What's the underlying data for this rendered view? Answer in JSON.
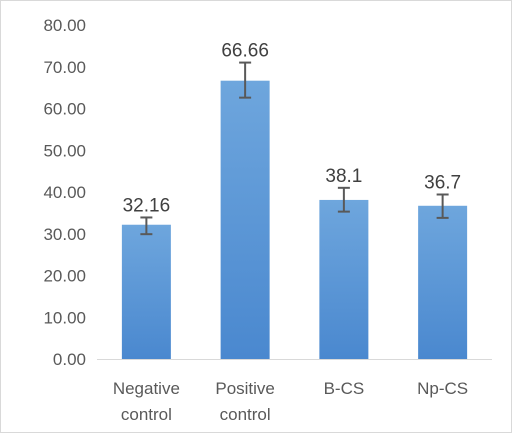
{
  "chart_data": {
    "type": "bar",
    "categories": [
      [
        "Negative",
        "control"
      ],
      [
        "Positive",
        "control"
      ],
      [
        "B-CS"
      ],
      [
        "Np-CS"
      ]
    ],
    "values": [
      32.16,
      66.66,
      38.1,
      36.7
    ],
    "value_labels": [
      "32.16",
      "66.66",
      "38.1",
      "36.7"
    ],
    "error_bars": [
      [
        29.9,
        33.9
      ],
      [
        62.6,
        71.0
      ],
      [
        35.3,
        41.0
      ],
      [
        33.8,
        39.4
      ]
    ],
    "ylim": [
      0,
      80
    ],
    "y_ticks": [
      "0.00",
      "10.00",
      "20.00",
      "30.00",
      "40.00",
      "50.00",
      "60.00",
      "70.00",
      "80.00"
    ],
    "title": "",
    "xlabel": "",
    "ylabel": "",
    "grid": false,
    "legend": "none",
    "colors": {
      "bar_top": "#6ea6dd",
      "bar_bottom": "#4a88cf",
      "error_bar": "#595959",
      "axis": "#d9d9d9",
      "tick_text": "#595959",
      "label_text": "#404040"
    }
  }
}
